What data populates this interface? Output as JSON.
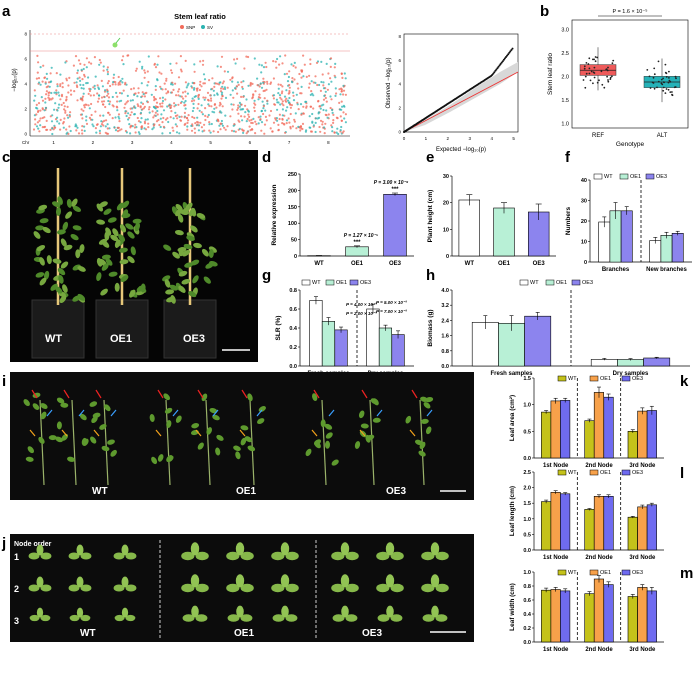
{
  "panels": {
    "a": "a",
    "b": "b",
    "c": "c",
    "d": "d",
    "e": "e",
    "f": "f",
    "g": "g",
    "h": "h",
    "i": "i",
    "j": "j",
    "k": "k",
    "l": "l",
    "m": "m"
  },
  "manhattan": {
    "title": "Stem leaf ratio",
    "legend_snp": "SNP",
    "legend_sv": "SV",
    "chr_label": "Chr",
    "chromosomes": [
      "1",
      "2",
      "3",
      "4",
      "5",
      "6",
      "7",
      "8"
    ],
    "yticks": [
      "0",
      "2",
      "4",
      "6",
      "8"
    ],
    "colors": {
      "snp": "#f26b5b",
      "sv": "#2bb3b1"
    }
  },
  "qq": {
    "xlabel": "Expected −log₁₀(p)",
    "ylabel": "Observed −log₁₀(p)",
    "xticks": [
      "0",
      "1",
      "2",
      "3",
      "4",
      "5"
    ],
    "yticks": [
      "0",
      "2",
      "4",
      "6",
      "8"
    ]
  },
  "photos": {
    "c_labels": [
      "WT",
      "OE1",
      "OE3"
    ],
    "i_labels": [
      "WT",
      "OE1",
      "OE3"
    ],
    "j_title": "Node order",
    "j_rows": [
      "1",
      "2",
      "3"
    ],
    "j_labels": [
      "WT",
      "OE1",
      "OE3"
    ]
  },
  "chart_data": [
    {
      "id": "b",
      "type": "box",
      "title": "",
      "xlabel": "Genotype",
      "ylabel": "Stem leaf ratio",
      "categories": [
        "REF",
        "ALT"
      ],
      "yticks": [
        "1.0",
        "1.5",
        "2.0",
        "2.5",
        "3.0"
      ],
      "ylim": [
        0.9,
        3.2
      ],
      "pvalue": "P = 1.6 × 10⁻⁵",
      "boxes": [
        {
          "q1": 2.02,
          "median": 2.13,
          "q3": 2.25,
          "low": 1.7,
          "high": 2.62,
          "color": "#ee5a5a"
        },
        {
          "q1": 1.76,
          "median": 1.88,
          "q3": 2.0,
          "low": 1.45,
          "high": 2.38,
          "color": "#25b2b8"
        }
      ]
    },
    {
      "id": "d",
      "type": "bar",
      "ylabel": "Relative expression",
      "categories": [
        "WT",
        "OE1",
        "OE3"
      ],
      "values": [
        1,
        28,
        188
      ],
      "errors": [
        0.5,
        3,
        4
      ],
      "ylim": [
        0,
        250
      ],
      "yticks": [
        "0",
        "50",
        "100",
        "150",
        "200",
        "250"
      ],
      "colors": [
        "#ffffff",
        "#b8f0d6",
        "#8c84ee"
      ],
      "annotations": [
        "",
        "P = 1.27 × 10⁻⁵",
        "P = 3.00 × 10⁻⁸"
      ],
      "stars": [
        "",
        "***",
        "***"
      ]
    },
    {
      "id": "e",
      "type": "bar",
      "ylabel": "Plant height (cm)",
      "categories": [
        "WT",
        "OE1",
        "OE3"
      ],
      "values": [
        21,
        18,
        16.5
      ],
      "errors": [
        2,
        2,
        3
      ],
      "ylim": [
        0,
        30
      ],
      "yticks": [
        "0",
        "10",
        "20",
        "30"
      ],
      "colors": [
        "#ffffff",
        "#b8f0d6",
        "#8c84ee"
      ]
    },
    {
      "id": "f",
      "type": "bar",
      "ylabel": "Numbers",
      "categories": [
        "Branches",
        "New branches"
      ],
      "legend": [
        "WT",
        "OE1",
        "OE3"
      ],
      "series": [
        {
          "name": "WT",
          "values": [
            19.5,
            10.5
          ],
          "errors": [
            2.5,
            1.5
          ]
        },
        {
          "name": "OE1",
          "values": [
            25,
            13
          ],
          "errors": [
            4,
            1.5
          ]
        },
        {
          "name": "OE3",
          "values": [
            25,
            14
          ],
          "errors": [
            2,
            1
          ]
        }
      ],
      "ylim": [
        0,
        40
      ],
      "yticks": [
        "0",
        "10",
        "20",
        "30",
        "40"
      ],
      "colors": [
        "#ffffff",
        "#b8f0d6",
        "#8c84ee"
      ]
    },
    {
      "id": "g",
      "type": "bar",
      "ylabel": "SLR (%)",
      "categories": [
        "Fresh samples",
        "Dry samples"
      ],
      "legend": [
        "WT",
        "OE1",
        "OE3"
      ],
      "series": [
        {
          "name": "WT",
          "values": [
            0.69,
            0.6
          ],
          "errors": [
            0.04,
            0.05
          ]
        },
        {
          "name": "OE1",
          "values": [
            0.47,
            0.4
          ],
          "errors": [
            0.04,
            0.03
          ]
        },
        {
          "name": "OE3",
          "values": [
            0.38,
            0.33
          ],
          "errors": [
            0.03,
            0.04
          ]
        }
      ],
      "ylim": [
        0,
        0.8
      ],
      "yticks": [
        "0.0",
        "0.2",
        "0.4",
        "0.6",
        "0.8"
      ],
      "colors": [
        "#ffffff",
        "#b8f0d6",
        "#8c84ee"
      ],
      "annotations": [
        "P = 4.00 × 10⁻³",
        "P = 2.00 × 10⁻³",
        "P = 5.00 × 10⁻³",
        "P = 7.00 × 10⁻³"
      ]
    },
    {
      "id": "h",
      "type": "bar",
      "ylabel": "Biomass (g)",
      "categories": [
        "Fresh samples",
        "Dry samples"
      ],
      "legend": [
        "WT",
        "OE1",
        "OE3"
      ],
      "series": [
        {
          "name": "WT",
          "values": [
            2.3,
            0.35
          ],
          "errors": [
            0.35,
            0.05
          ]
        },
        {
          "name": "OE1",
          "values": [
            2.25,
            0.34
          ],
          "errors": [
            0.4,
            0.05
          ]
        },
        {
          "name": "OE3",
          "values": [
            2.62,
            0.42
          ],
          "errors": [
            0.2,
            0.04
          ]
        }
      ],
      "ylim": [
        0,
        4
      ],
      "yticks": [
        "0.0",
        "0.8",
        "1.6",
        "2.4",
        "3.2",
        "4.0"
      ],
      "colors": [
        "#ffffff",
        "#b8f0d6",
        "#8c84ee"
      ]
    },
    {
      "id": "k",
      "type": "bar",
      "ylabel": "Leaf area (cm²)",
      "categories": [
        "1st Node",
        "2nd Node",
        "3rd Node"
      ],
      "legend": [
        "WT",
        "OE1",
        "OE3"
      ],
      "series": [
        {
          "name": "WT",
          "values": [
            0.86,
            0.7,
            0.5
          ],
          "errors": [
            0.03,
            0.03,
            0.03
          ]
        },
        {
          "name": "OE1",
          "values": [
            1.07,
            1.23,
            0.88
          ],
          "errors": [
            0.05,
            0.1,
            0.06
          ]
        },
        {
          "name": "OE3",
          "values": [
            1.08,
            1.14,
            0.89
          ],
          "errors": [
            0.04,
            0.06,
            0.08
          ]
        }
      ],
      "ylim": [
        0,
        1.5
      ],
      "yticks": [
        "0.0",
        "0.5",
        "1.0",
        "1.5"
      ],
      "colors": [
        "#c4c21a",
        "#f7a14a",
        "#6f6bf0"
      ]
    },
    {
      "id": "l",
      "type": "bar",
      "ylabel": "Leaf length (cm)",
      "categories": [
        "1st Node",
        "2nd Node",
        "3rd Node"
      ],
      "legend": [
        "WT",
        "OE1",
        "OE3"
      ],
      "series": [
        {
          "name": "WT",
          "values": [
            1.55,
            1.3,
            1.05
          ],
          "errors": [
            0.05,
            0.03,
            0.03
          ]
        },
        {
          "name": "OE1",
          "values": [
            1.85,
            1.72,
            1.38
          ],
          "errors": [
            0.05,
            0.05,
            0.06
          ]
        },
        {
          "name": "OE3",
          "values": [
            1.8,
            1.72,
            1.45
          ],
          "errors": [
            0.04,
            0.05,
            0.05
          ]
        }
      ],
      "ylim": [
        0,
        2.5
      ],
      "yticks": [
        "0.0",
        "0.5",
        "1.0",
        "1.5",
        "2.0",
        "2.5"
      ],
      "colors": [
        "#c4c21a",
        "#f7a14a",
        "#6f6bf0"
      ]
    },
    {
      "id": "m",
      "type": "bar",
      "ylabel": "Leaf width (cm)",
      "categories": [
        "1st Node",
        "2nd Node",
        "3rd Node"
      ],
      "legend": [
        "WT",
        "OE1",
        "OE3"
      ],
      "series": [
        {
          "name": "WT",
          "values": [
            0.74,
            0.69,
            0.65
          ],
          "errors": [
            0.03,
            0.03,
            0.03
          ]
        },
        {
          "name": "OE1",
          "values": [
            0.75,
            0.9,
            0.78
          ],
          "errors": [
            0.03,
            0.05,
            0.04
          ]
        },
        {
          "name": "OE3",
          "values": [
            0.73,
            0.82,
            0.73
          ],
          "errors": [
            0.03,
            0.04,
            0.05
          ]
        }
      ],
      "ylim": [
        0,
        1.0
      ],
      "yticks": [
        "0.0",
        "0.2",
        "0.4",
        "0.6",
        "0.8",
        "1.0"
      ],
      "colors": [
        "#c4c21a",
        "#f7a14a",
        "#6f6bf0"
      ]
    }
  ]
}
